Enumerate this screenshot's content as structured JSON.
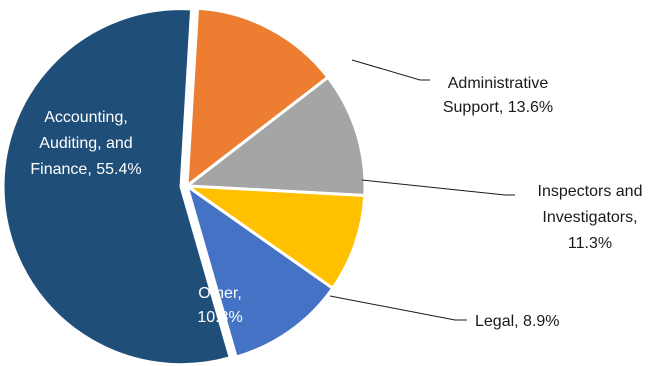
{
  "chart_data": {
    "type": "pie",
    "slices": [
      {
        "key": "accounting",
        "label_lines": [
          "Accounting,",
          "Auditing, and",
          "Finance, 55.4%"
        ],
        "category": "Accounting, Auditing, and Finance",
        "value": 55.4,
        "color": "#1f4e79",
        "label_color": "#ffffff"
      },
      {
        "key": "administrative",
        "label_lines": [
          "Administrative",
          "Support, 13.6%"
        ],
        "category": "Administrative Support",
        "value": 13.6,
        "color": "#ed7d31",
        "label_color": "#1a1a1a"
      },
      {
        "key": "inspectors",
        "label_lines": [
          "Inspectors and",
          "Investigators,",
          "11.3%"
        ],
        "category": "Inspectors and Investigators",
        "value": 11.3,
        "color": "#a5a5a5",
        "label_color": "#1a1a1a"
      },
      {
        "key": "legal",
        "label_lines": [
          "Legal, 8.9%"
        ],
        "category": "Legal",
        "value": 8.9,
        "color": "#ffc000",
        "label_color": "#1a1a1a"
      },
      {
        "key": "other",
        "label_lines": [
          "Other,",
          "10.8%"
        ],
        "category": "Other",
        "value": 10.8,
        "color": "#4472c4",
        "label_color": "#ffffff"
      }
    ],
    "legend": "none",
    "exploded_slice": "accounting"
  }
}
